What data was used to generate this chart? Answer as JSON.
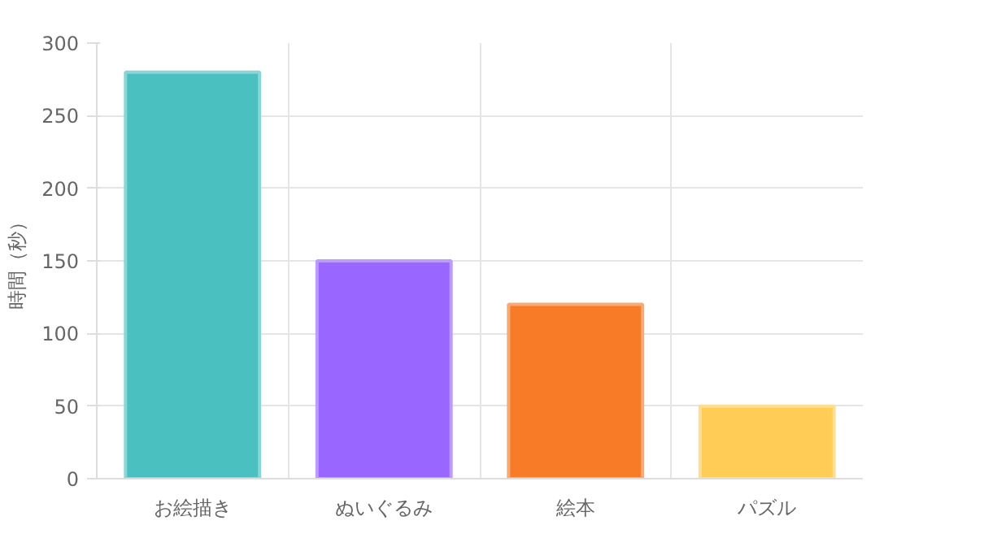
{
  "chart_data": {
    "type": "bar",
    "ylabel": "時間（秒）",
    "categories": [
      "お絵描き",
      "ぬいぐるみ",
      "絵本",
      "パズル"
    ],
    "values": [
      280,
      150,
      120,
      50
    ],
    "colors": [
      "#4bc0c0",
      "#9966ff",
      "#f87c28",
      "#ffcd56"
    ],
    "ylim": [
      0,
      300
    ],
    "yticks": [
      0,
      50,
      100,
      150,
      200,
      250,
      300
    ],
    "grid": true
  }
}
